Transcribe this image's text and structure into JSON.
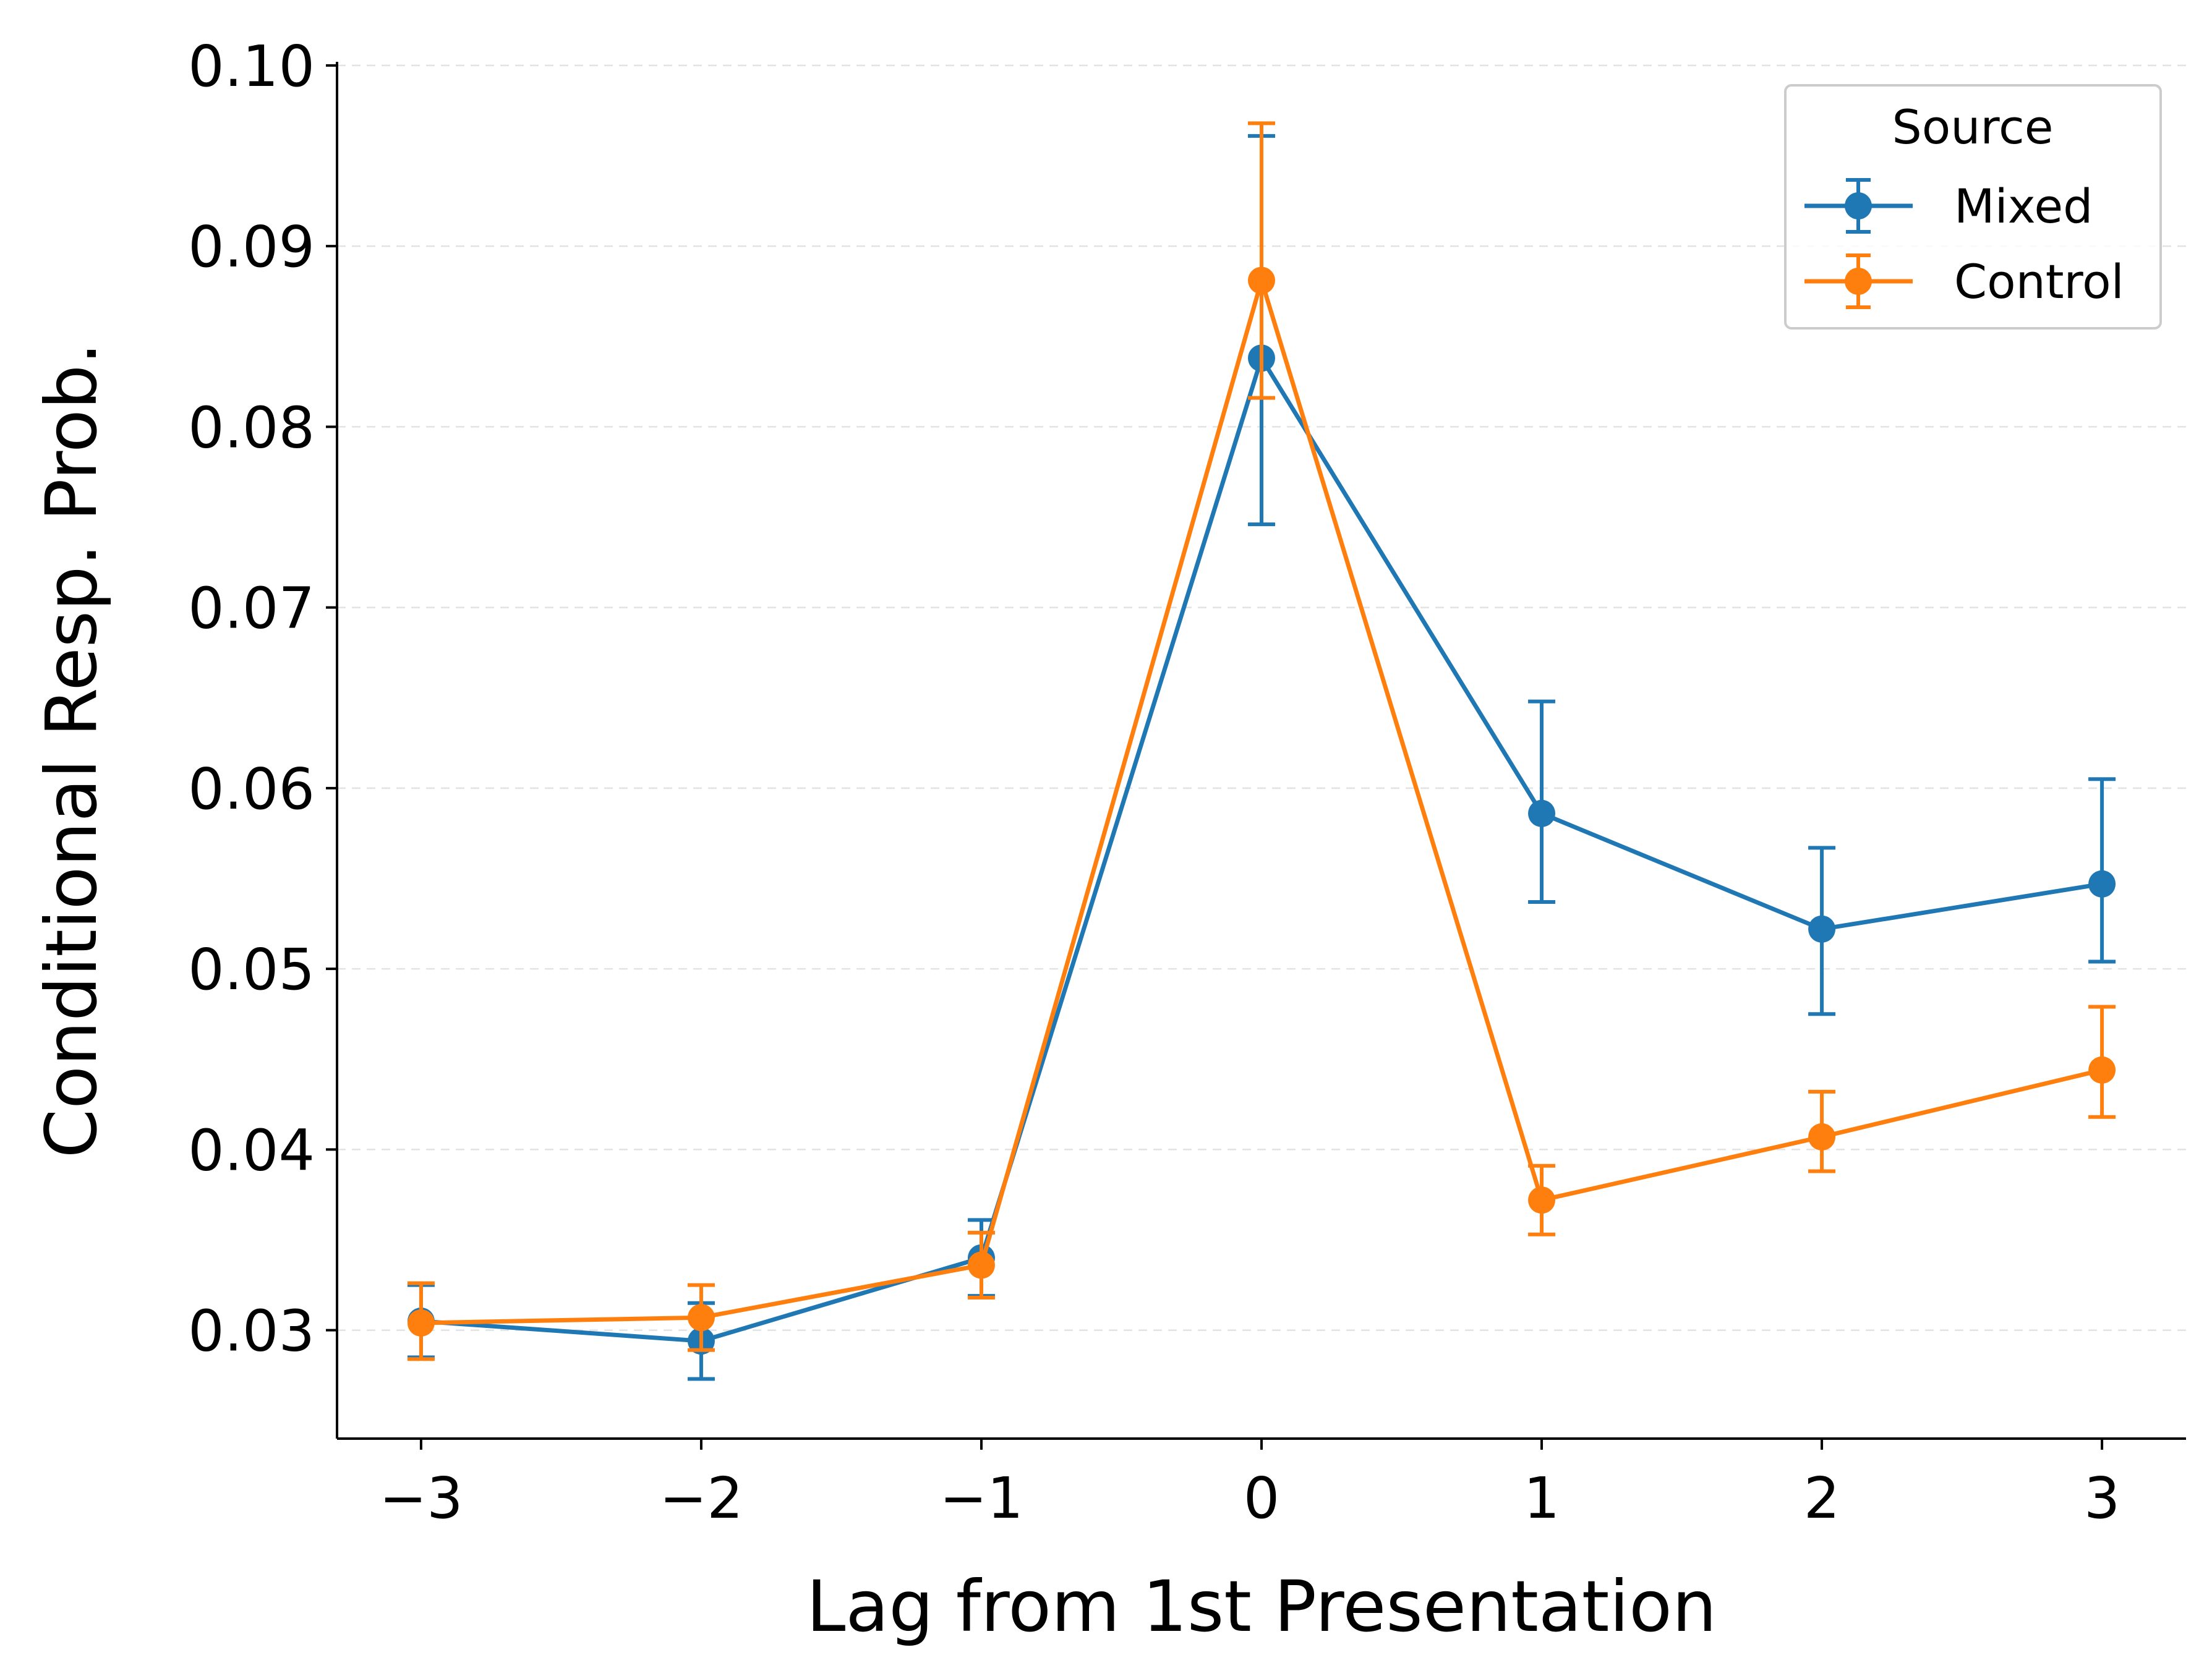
{
  "chart_data": {
    "type": "line",
    "title": "",
    "xlabel": "Lag from 1st Presentation",
    "ylabel": "Conditional Resp. Prob.",
    "x": [
      -3,
      -2,
      -1,
      0,
      1,
      2,
      3
    ],
    "x_tick_labels": [
      "−3",
      "−2",
      "−1",
      "0",
      "1",
      "2",
      "3"
    ],
    "y_ticks": [
      0.03,
      0.04,
      0.05,
      0.06,
      0.07,
      0.08,
      0.09,
      0.1
    ],
    "y_tick_labels": [
      "0.03",
      "0.04",
      "0.05",
      "0.06",
      "0.07",
      "0.08",
      "0.09",
      "0.10"
    ],
    "xlim": [
      -3.3,
      3.3
    ],
    "ylim": [
      0.024,
      0.1002
    ],
    "grid": "horizontal-dashed",
    "legend": {
      "title": "Source",
      "placement": "top-right"
    },
    "series": [
      {
        "name": "Mixed",
        "color": "#1f77b4",
        "values": [
          0.0305,
          0.0294,
          0.034,
          0.0838,
          0.0586,
          0.0522,
          0.0547
        ],
        "err_low": [
          0.0285,
          0.0273,
          0.0319,
          0.0746,
          0.0537,
          0.0475,
          0.0504
        ],
        "err_high": [
          0.0325,
          0.0315,
          0.0361,
          0.0961,
          0.0648,
          0.0567,
          0.0605
        ]
      },
      {
        "name": "Control",
        "color": "#ff7f0e",
        "values": [
          0.0304,
          0.0307,
          0.0336,
          0.0881,
          0.0372,
          0.0407,
          0.0444
        ],
        "err_low": [
          0.0284,
          0.0289,
          0.0318,
          0.0816,
          0.0353,
          0.0388,
          0.0418
        ],
        "err_high": [
          0.0326,
          0.0325,
          0.0354,
          0.0968,
          0.0391,
          0.0432,
          0.0479
        ]
      }
    ]
  }
}
